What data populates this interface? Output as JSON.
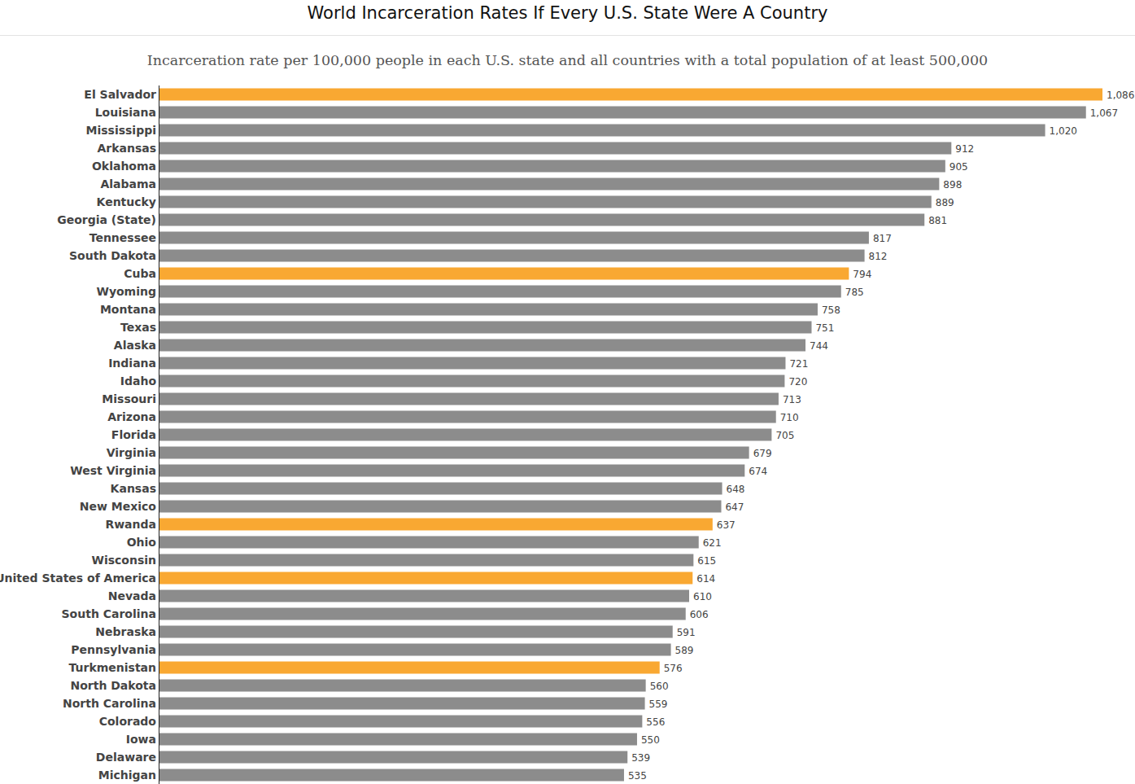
{
  "chart_data": {
    "type": "bar",
    "orientation": "horizontal",
    "title": "World Incarceration Rates If Every U.S. State Were A Country",
    "subtitle": "Incarceration rate per 100,000 people in each U.S. state and all countries with a total population of at least 500,000",
    "categories": [
      "El Salvador",
      "Louisiana",
      "Mississippi",
      "Arkansas",
      "Oklahoma",
      "Alabama",
      "Kentucky",
      "Georgia (State)",
      "Tennessee",
      "South Dakota",
      "Cuba",
      "Wyoming",
      "Montana",
      "Texas",
      "Alaska",
      "Indiana",
      "Idaho",
      "Missouri",
      "Arizona",
      "Florida",
      "Virginia",
      "West Virginia",
      "Kansas",
      "New Mexico",
      "Rwanda",
      "Ohio",
      "Wisconsin",
      "United States of America",
      "Nevada",
      "South Carolina",
      "Nebraska",
      "Pennsylvania",
      "Turkmenistan",
      "North Dakota",
      "North Carolina",
      "Colorado",
      "Iowa",
      "Delaware",
      "Michigan"
    ],
    "values": [
      1086,
      1067,
      1020,
      912,
      905,
      898,
      889,
      881,
      817,
      812,
      794,
      785,
      758,
      751,
      744,
      721,
      720,
      713,
      710,
      705,
      679,
      674,
      648,
      647,
      637,
      621,
      615,
      614,
      610,
      606,
      591,
      589,
      576,
      560,
      559,
      556,
      550,
      539,
      535
    ],
    "value_labels": [
      "1,086",
      "1,067",
      "1,020",
      "912",
      "905",
      "898",
      "889",
      "881",
      "817",
      "812",
      "794",
      "785",
      "758",
      "751",
      "744",
      "721",
      "720",
      "713",
      "710",
      "705",
      "679",
      "674",
      "648",
      "647",
      "637",
      "621",
      "615",
      "614",
      "610",
      "606",
      "591",
      "589",
      "576",
      "560",
      "559",
      "556",
      "550",
      "539",
      "535"
    ],
    "colors": [
      "#f9a832",
      "#8c8c8c",
      "#8c8c8c",
      "#8c8c8c",
      "#8c8c8c",
      "#8c8c8c",
      "#8c8c8c",
      "#8c8c8c",
      "#8c8c8c",
      "#8c8c8c",
      "#f9a832",
      "#8c8c8c",
      "#8c8c8c",
      "#8c8c8c",
      "#8c8c8c",
      "#8c8c8c",
      "#8c8c8c",
      "#8c8c8c",
      "#8c8c8c",
      "#8c8c8c",
      "#8c8c8c",
      "#8c8c8c",
      "#8c8c8c",
      "#8c8c8c",
      "#f9a832",
      "#8c8c8c",
      "#8c8c8c",
      "#f9a832",
      "#8c8c8c",
      "#8c8c8c",
      "#8c8c8c",
      "#8c8c8c",
      "#f9a832",
      "#8c8c8c",
      "#8c8c8c",
      "#8c8c8c",
      "#8c8c8c",
      "#8c8c8c",
      "#8c8c8c"
    ],
    "xlim": [
      0,
      1086
    ],
    "data_labels": true,
    "tick_labels": "y",
    "grid": false
  }
}
